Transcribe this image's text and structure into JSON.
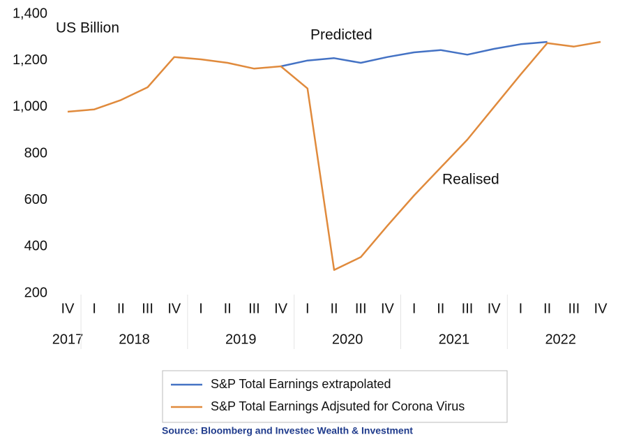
{
  "chart_data": {
    "type": "line",
    "annotations": [
      "US Billion",
      "Predicted",
      "Realised"
    ],
    "categories": [
      "IV",
      "I",
      "II",
      "III",
      "IV",
      "I",
      "II",
      "III",
      "IV",
      "I",
      "II",
      "III",
      "IV",
      "I",
      "II",
      "III",
      "IV",
      "I",
      "II",
      "III",
      "IV"
    ],
    "years": [
      "2017",
      "2018",
      "2019",
      "2020",
      "2021",
      "2022"
    ],
    "series": [
      {
        "name": "S&P Total Earnings extrapolated",
        "color": "#4472c4",
        "values": [
          null,
          null,
          null,
          null,
          null,
          null,
          null,
          null,
          1175,
          1200,
          1210,
          1190,
          1215,
          1235,
          1245,
          1225,
          1250,
          1270,
          1280,
          null,
          null
        ]
      },
      {
        "name": "S&P Total Earnings Adjsuted for Corona Virus",
        "color": "#e08a3c",
        "values": [
          980,
          990,
          1030,
          1085,
          1215,
          1205,
          1190,
          1165,
          1175,
          1080,
          300,
          355,
          490,
          620,
          740,
          860,
          1000,
          1140,
          1275,
          1260,
          1280
        ]
      }
    ],
    "ylim": [
      200,
      1400
    ],
    "yticks": [
      200,
      400,
      600,
      800,
      {
        "value": 1000,
        "label": "1,000"
      },
      {
        "value": 1200,
        "label": "1,200"
      },
      {
        "value": 1400,
        "label": "1,400"
      }
    ],
    "grid": false,
    "source": "Source: Bloomberg and Investec Wealth & Investment"
  }
}
